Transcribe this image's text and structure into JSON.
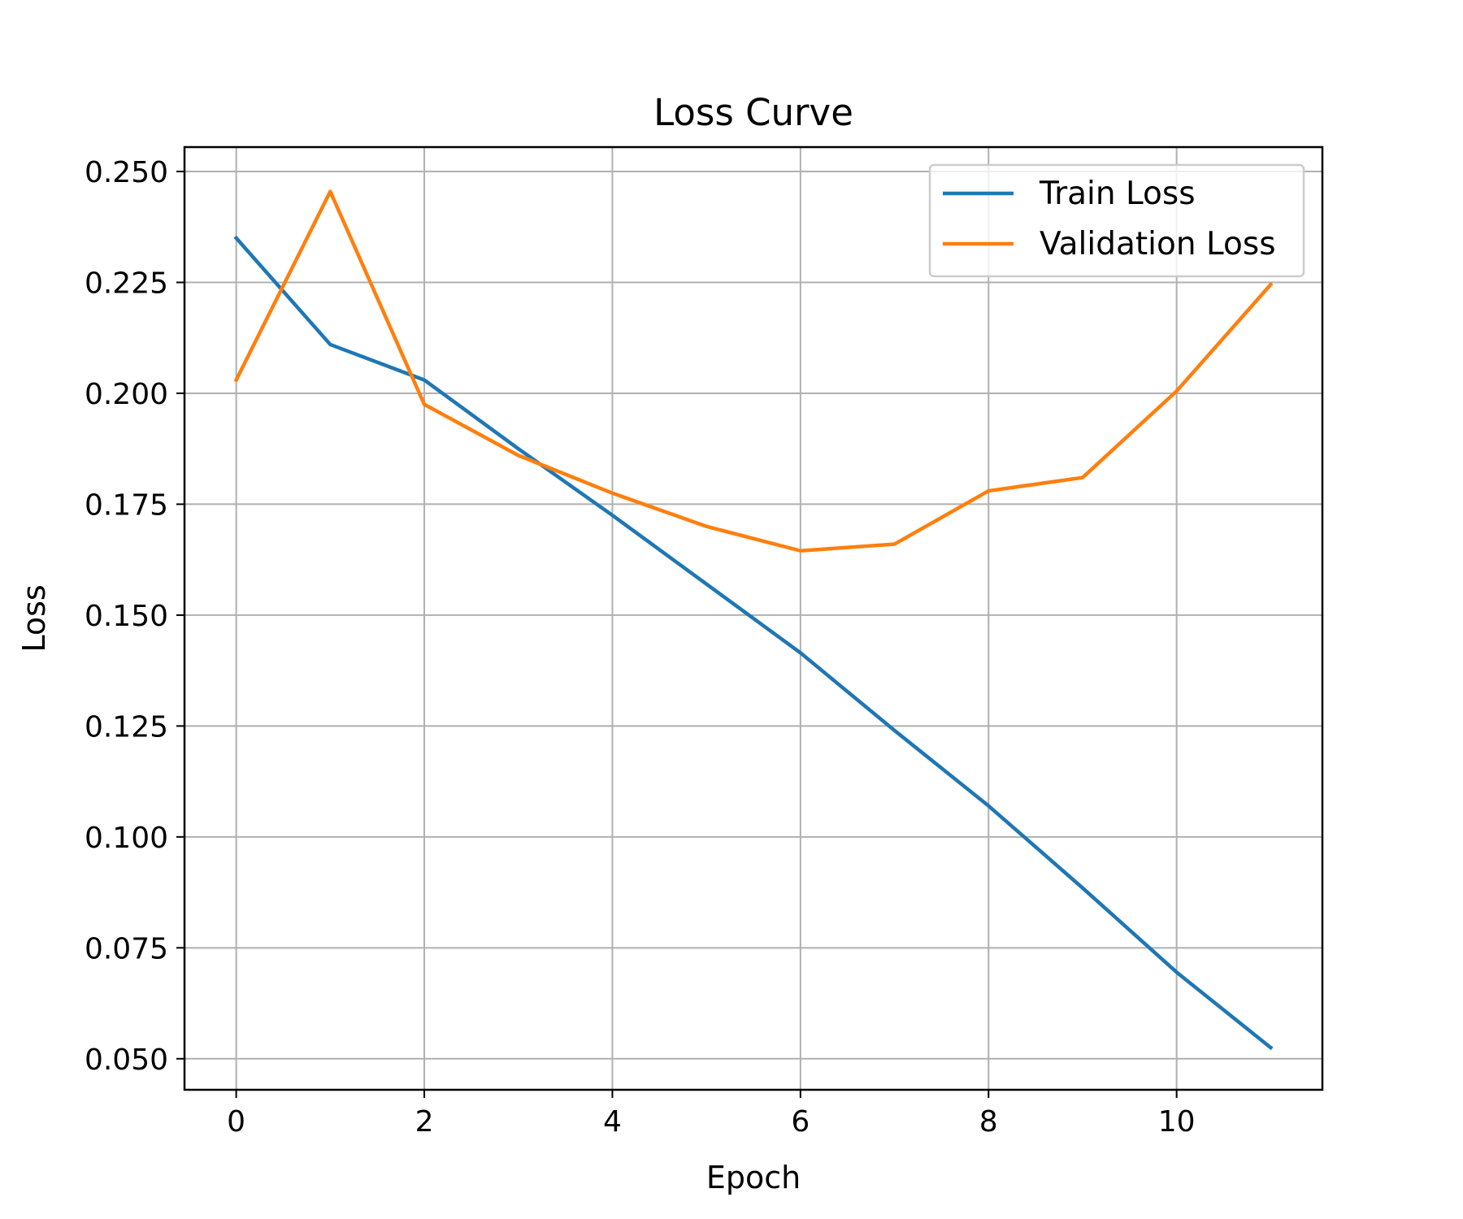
{
  "chart_data": {
    "type": "line",
    "title": "Loss Curve",
    "xlabel": "Epoch",
    "ylabel": "Loss",
    "x": [
      0,
      1,
      2,
      3,
      4,
      5,
      6,
      7,
      8,
      9,
      10,
      11
    ],
    "series": [
      {
        "name": "Train Loss",
        "color": "#1f77b4",
        "values": [
          0.235,
          0.211,
          0.203,
          0.1875,
          0.1725,
          0.157,
          0.1415,
          0.124,
          0.107,
          0.0885,
          0.0695,
          0.0525
        ]
      },
      {
        "name": "Validation Loss",
        "color": "#ff7f0e",
        "values": [
          0.203,
          0.2455,
          0.1975,
          0.186,
          0.1775,
          0.17,
          0.1645,
          0.166,
          0.178,
          0.181,
          0.2005,
          0.2245
        ]
      }
    ],
    "xlim": [
      -0.55,
      11.55
    ],
    "ylim": [
      0.043,
      0.2555
    ],
    "xticks": [
      0,
      2,
      4,
      6,
      8,
      10
    ],
    "xtick_labels": [
      "0",
      "2",
      "4",
      "6",
      "8",
      "10"
    ],
    "yticks": [
      0.05,
      0.075,
      0.1,
      0.125,
      0.15,
      0.175,
      0.2,
      0.225,
      0.25
    ],
    "ytick_labels": [
      "0.050",
      "0.075",
      "0.100",
      "0.125",
      "0.150",
      "0.175",
      "0.200",
      "0.225",
      "0.250"
    ],
    "grid": true,
    "legend_position": "top-right"
  }
}
